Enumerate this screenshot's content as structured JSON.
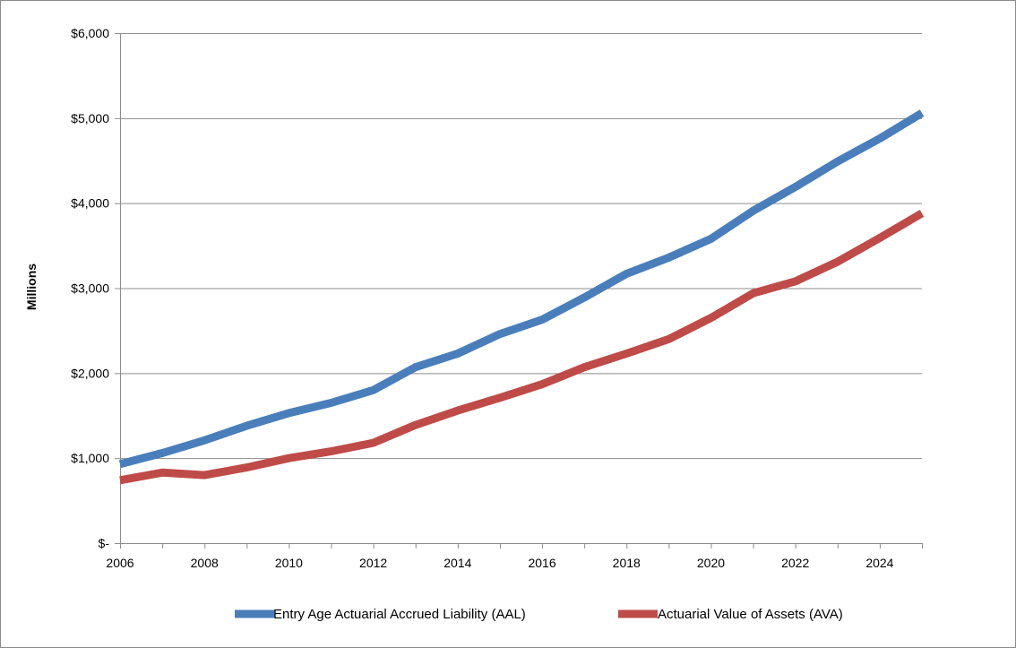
{
  "chart_data": {
    "type": "line",
    "title": "",
    "xlabel": "",
    "ylabel": "Millions",
    "x": [
      2006,
      2007,
      2008,
      2009,
      2010,
      2011,
      2012,
      2013,
      2014,
      2015,
      2016,
      2017,
      2018,
      2019,
      2020,
      2021,
      2022,
      2023,
      2024,
      2025
    ],
    "xlim": [
      2006,
      2025
    ],
    "ylim": [
      0,
      6000
    ],
    "x_tick_values": [
      2006,
      2008,
      2010,
      2012,
      2014,
      2016,
      2018,
      2020,
      2022,
      2024
    ],
    "x_tick_labels": [
      "2006",
      "2008",
      "2010",
      "2012",
      "2014",
      "2016",
      "2018",
      "2020",
      "2022",
      "2024"
    ],
    "y_tick_values": [
      0,
      1000,
      2000,
      3000,
      4000,
      5000,
      6000
    ],
    "y_tick_labels": [
      "$-",
      "$1,000",
      "$2,000",
      "$3,000",
      "$4,000",
      "$5,000",
      "$6,000"
    ],
    "grid": true,
    "legend_position": "bottom",
    "series": [
      {
        "name": "Entry Age Actuarial Accrued Liability (AAL)",
        "color": "#4a7ebb",
        "values": [
          930,
          1060,
          1210,
          1380,
          1530,
          1650,
          1800,
          2070,
          2230,
          2460,
          2630,
          2890,
          3170,
          3360,
          3580,
          3910,
          4190,
          4490,
          4760,
          5060
        ]
      },
      {
        "name": "Actuarial Value of Assets (AVA)",
        "color": "#be4b48",
        "values": [
          740,
          830,
          800,
          890,
          1000,
          1080,
          1180,
          1390,
          1560,
          1710,
          1870,
          2070,
          2230,
          2400,
          2650,
          2940,
          3080,
          3310,
          3590,
          3880
        ]
      }
    ]
  }
}
